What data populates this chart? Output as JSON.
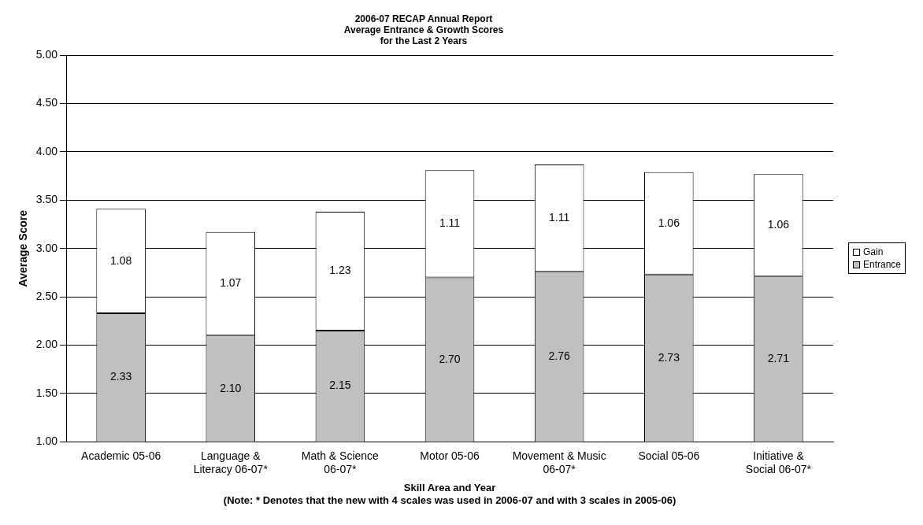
{
  "chart_data": {
    "type": "bar",
    "title": "2006-07 RECAP Annual Report",
    "subtitle": "Average Entrance & Growth Scores\nfor the Last 2 Years",
    "xlabel": "Skill Area and Year",
    "ylabel": "Average Score",
    "annotations": [
      "(Note: * Denotes that the new with 4 scales was used in 2006-07 and with 3 scales in 2005-06)"
    ],
    "categories": [
      "Academic 05-06",
      "Language & Literacy 06-07*",
      "Math & Science 06-07*",
      "Motor 05-06",
      "Movement & Music 06-07*",
      "Social 05-06",
      "Initiative & Social 06-07*"
    ],
    "stacked": true,
    "series": [
      {
        "name": "Entrance",
        "color": "#c0c0c0",
        "values": [
          2.33,
          2.1,
          2.15,
          2.7,
          2.76,
          2.73,
          2.71
        ],
        "value_labels": [
          "2.33",
          "2.10",
          "2.15",
          "2.70",
          "2.76",
          "2.73",
          "2.71"
        ]
      },
      {
        "name": "Gain",
        "color": "#ffffff",
        "values": [
          1.08,
          1.07,
          1.23,
          1.11,
          1.11,
          1.06,
          1.06
        ],
        "value_labels": [
          "1.08",
          "1.07",
          "1.23",
          "1.11",
          "1.11",
          "1.06",
          "1.06"
        ]
      }
    ],
    "ylim": [
      1,
      5
    ],
    "yticks": [
      {
        "value": 1,
        "label": "1.00"
      },
      {
        "value": 1.5,
        "label": "1.50"
      },
      {
        "value": 2,
        "label": "2.00"
      },
      {
        "value": 2.5,
        "label": "2.50"
      },
      {
        "value": 3,
        "label": "3.00"
      },
      {
        "value": 3.5,
        "label": "3.50"
      },
      {
        "value": 4,
        "label": "4.00"
      },
      {
        "value": 4.5,
        "label": "4.50"
      },
      {
        "value": 5,
        "label": "5.00"
      }
    ],
    "grid": "y",
    "legend": "right"
  }
}
